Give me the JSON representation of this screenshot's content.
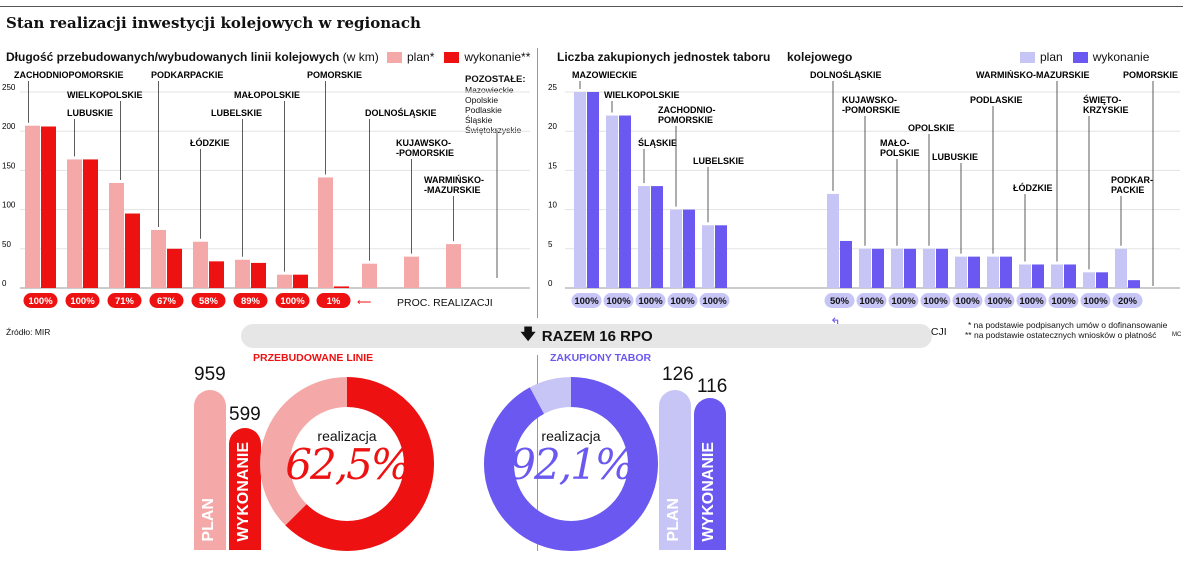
{
  "title": "Stan realizacji inwestycji kolejowych w regionach",
  "colors": {
    "rail_plan": "#f4a8a8",
    "rail_done": "#ee1111",
    "stock_plan": "#c7c5f6",
    "stock_done": "#6a58f0",
    "gray": "#e6e6e6"
  },
  "left": {
    "subtitle": "Długość przebudowanych/wybudowanych linii kolejowych",
    "unit": "(w km)",
    "legend": {
      "plan": "plan*",
      "done": "wykonanie**"
    },
    "pozostale_title": "POZOSTAŁE:",
    "pozostale": [
      "Mazowieckie",
      "Opolskie",
      "Podlaskie",
      "Śląskie",
      "Świętokrzyskie"
    ],
    "proc_label": "PROC. REALIZACJI"
  },
  "right": {
    "subtitle_a": "Liczba zakupionych jednostek taboru",
    "subtitle_b": "kolejowego",
    "legend": {
      "plan": "plan",
      "done": "wykonanie"
    },
    "proc_label": "PROC. REALIZACJI",
    "footnote1": "* na podstawie podpisanych umów o dofinansowanie",
    "footnote2": "** na podstawie ostatecznych wniosków o płatność",
    "corner": "MC"
  },
  "source": "Źródło: MIR",
  "razem": "RAZEM 16 RPO",
  "razem_icon": "arrow-down-icon",
  "summary": {
    "rail": {
      "title": "PRZEBUDOWANE LINIE",
      "plan": "959",
      "done": "599",
      "plan_label": "PLAN",
      "done_label": "WYKONANIE",
      "realiz_label": "realizacja",
      "pct": "62,5%",
      "ratio": 0.625
    },
    "stock": {
      "title": "ZAKUPIONY TABOR",
      "plan": "126",
      "done": "116",
      "plan_label": "PLAN",
      "done_label": "WYKONANIE",
      "realiz_label": "realizacja",
      "pct": "92,1%",
      "ratio": 0.921
    }
  },
  "chart_data": [
    {
      "type": "bar",
      "title": "Długość przebudowanych/wybudowanych linii kolejowych (w km)",
      "ylim": [
        0,
        250
      ],
      "yticks": [
        "0",
        "50",
        "100",
        "150",
        "200",
        "250"
      ],
      "categories": [
        "ZACHODNIOPOMORSKIE",
        "LUBUSKIE",
        "WIELKOPOLSKIE",
        "PODKARPACKIE",
        "ŁÓDZKIE",
        "LUBELSKIE",
        "MAŁOPOLSKIE",
        "POMORSKIE",
        "DOLNOŚLĄSKIE",
        "KUJAWSKO-POMORSKIE",
        "WARMIŃSKO-MAZURSKIE",
        "POZOSTAŁE"
      ],
      "label_lines": [
        [
          "ZACHODNIOPOMORSKIE"
        ],
        [
          "LUBUSKIE"
        ],
        [
          "WIELKOPOLSKIE"
        ],
        [
          "PODKARPACKIE"
        ],
        [
          "ŁÓDZKIE"
        ],
        [
          "LUBELSKIE"
        ],
        [
          "MAŁOPOLSKIE"
        ],
        [
          "POMORSKIE"
        ],
        [
          "DOLNOŚLĄSKIE"
        ],
        [
          "KUJAWSKO-",
          "-POMORSKIE"
        ],
        [
          "WARMIŃSKO-",
          "-MAZURSKIE"
        ],
        []
      ],
      "series": [
        {
          "name": "plan*",
          "values": [
            207,
            164,
            134,
            74,
            59,
            36,
            17,
            141,
            31,
            40,
            56,
            0
          ]
        },
        {
          "name": "wykonanie**",
          "values": [
            206,
            164,
            95,
            50,
            34,
            32,
            17,
            2,
            0,
            0,
            0,
            0
          ]
        }
      ],
      "percent": [
        "100%",
        "100%",
        "71%",
        "67%",
        "58%",
        "89%",
        "100%",
        "1%"
      ]
    },
    {
      "type": "bar",
      "title": "Liczba zakupionych jednostek taboru kolejowego",
      "ylim": [
        0,
        25
      ],
      "yticks": [
        "0",
        "5",
        "10",
        "15",
        "20",
        "25"
      ],
      "categories": [
        "MAZOWIECKIE",
        "WIELKOPOLSKIE",
        "ŚLĄSKIE",
        "ZACHODNIOPOMORSKIE",
        "LUBELSKIE",
        "DOLNOŚLĄSKIE",
        "KUJAWSKO-POMORSKIE",
        "MAŁOPOLSKIE",
        "OPOLSKIE",
        "LUBUSKIE",
        "PODLASKIE",
        "ŁÓDZKIE",
        "WARMIŃSKO-MAZURSKIE",
        "ŚWIĘTOKRZYSKIE",
        "PODKARPACKIE",
        "POMORSKIE"
      ],
      "label_lines": [
        [
          "MAZOWIECKIE"
        ],
        [
          "WIELKOPOLSKIE"
        ],
        [
          "ŚLĄSKIE"
        ],
        [
          "ZACHODNIO-",
          "POMORSKIE"
        ],
        [
          "LUBELSKIE"
        ],
        [
          "DOLNOŚLĄSKIE"
        ],
        [
          "KUJAWSKO-",
          "-POMORSKIE"
        ],
        [
          "MAŁO-",
          "POLSKIE"
        ],
        [
          "OPOLSKIE"
        ],
        [
          "LUBUSKIE"
        ],
        [
          "PODLASKIE"
        ],
        [
          "ŁÓDZKIE"
        ],
        [
          "WARMIŃSKO-MAZURSKIE"
        ],
        [
          "ŚWIĘTO-",
          "KRZYSKIE"
        ],
        [
          "PODKAR-",
          "PACKIE"
        ],
        [
          "POMORSKIE"
        ]
      ],
      "series": [
        {
          "name": "plan",
          "values": [
            25,
            22,
            13,
            10,
            8,
            12,
            5,
            5,
            5,
            4,
            4,
            3,
            3,
            2,
            5,
            0
          ]
        },
        {
          "name": "wykonanie",
          "values": [
            25,
            22,
            13,
            10,
            8,
            6,
            5,
            5,
            5,
            4,
            4,
            3,
            3,
            2,
            1,
            0
          ]
        }
      ],
      "percent": [
        "100%",
        "100%",
        "100%",
        "100%",
        "100%",
        "50%",
        "100%",
        "100%",
        "100%",
        "100%",
        "100%",
        "100%",
        "100%",
        "100%",
        "20%"
      ]
    }
  ]
}
